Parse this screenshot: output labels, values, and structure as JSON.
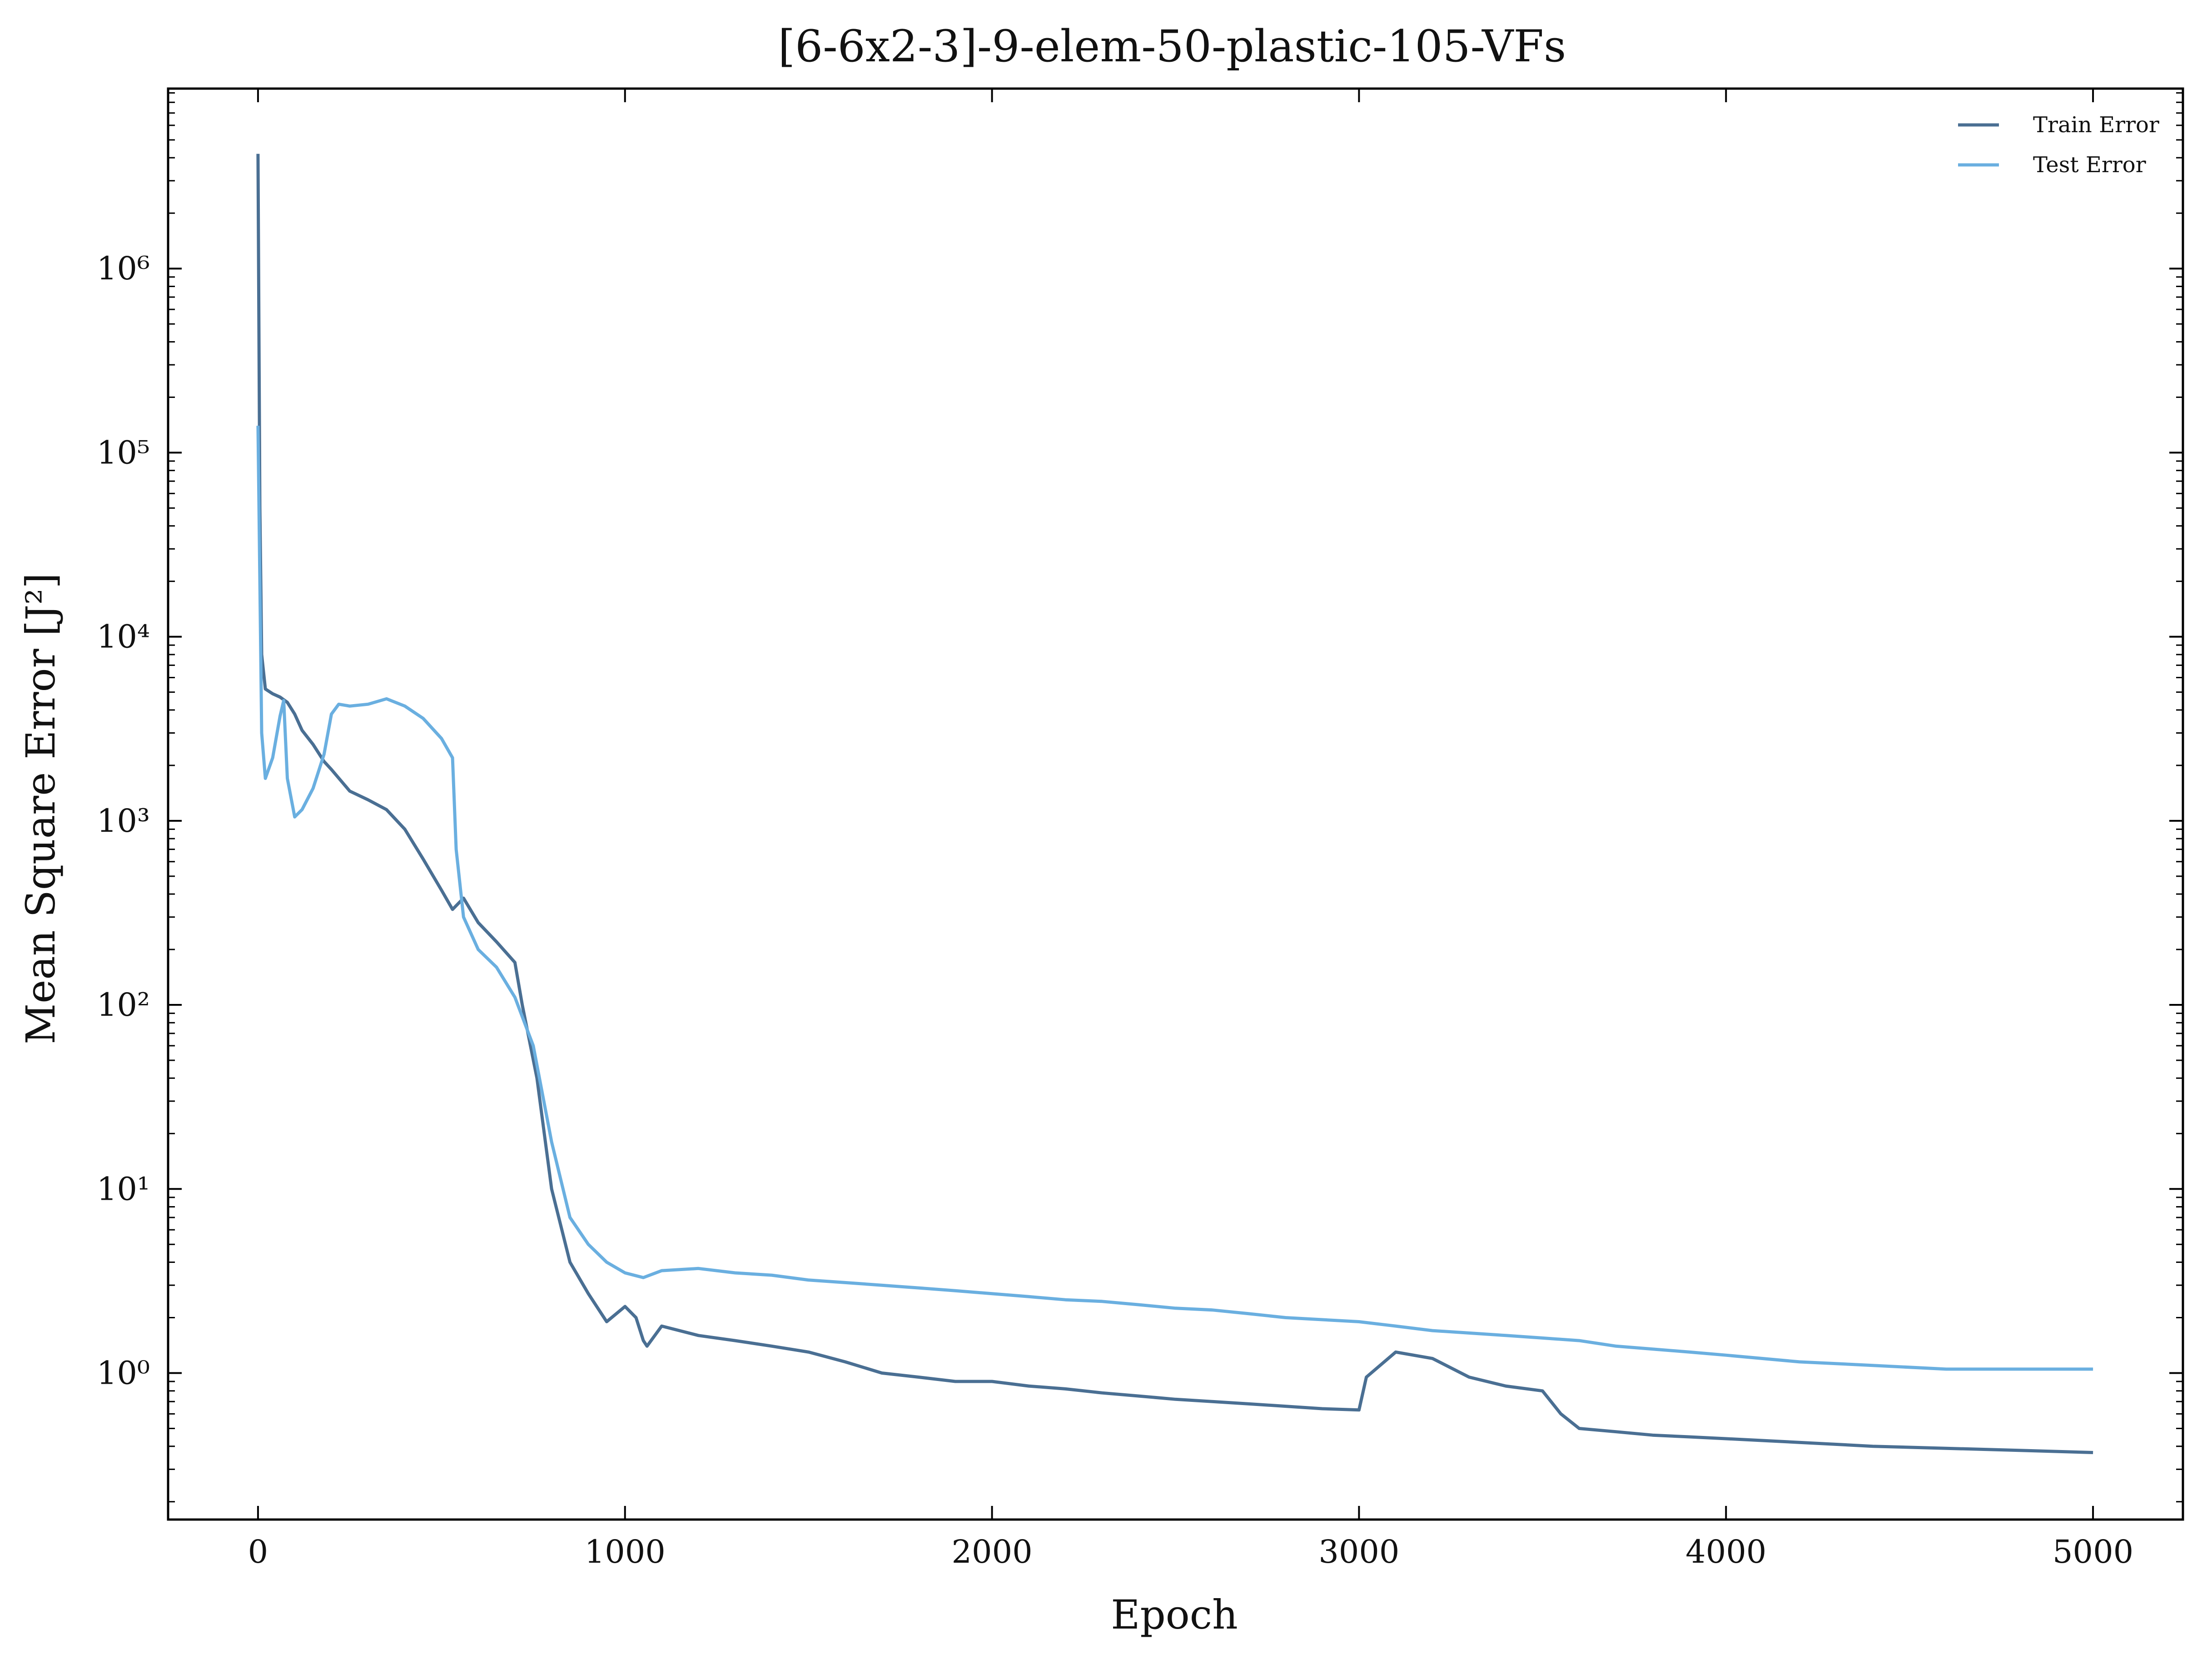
{
  "chart_data": {
    "type": "line",
    "title": "[6-6x2-3]-9-elem-50-plastic-105-VFs",
    "xlabel": "Epoch",
    "ylabel": "Mean Square Error [J²]",
    "xlim": [
      -245,
      5245
    ],
    "ylim": [
      0.16,
      9500000
    ],
    "yscale": "log",
    "xticks": [
      0,
      1000,
      2000,
      3000,
      4000,
      5000
    ],
    "xtick_labels": [
      "0",
      "1000",
      "2000",
      "3000",
      "4000",
      "5000"
    ],
    "yticks": [
      1,
      10,
      100,
      1000,
      10000,
      100000,
      1000000
    ],
    "ytick_labels": [
      "10⁰",
      "10¹",
      "10²",
      "10³",
      "10⁴",
      "10⁵",
      "10⁶"
    ],
    "grid": false,
    "legend_position": "top-right",
    "series": [
      {
        "name": "Train Error",
        "color": "#4a6f93",
        "x": [
          0,
          5,
          10,
          20,
          40,
          60,
          80,
          100,
          120,
          150,
          180,
          200,
          250,
          300,
          350,
          400,
          450,
          500,
          530,
          560,
          600,
          650,
          700,
          720,
          760,
          800,
          850,
          900,
          950,
          1000,
          1030,
          1050,
          1060,
          1100,
          1200,
          1300,
          1400,
          1500,
          1600,
          1700,
          1800,
          1900,
          2000,
          2100,
          2200,
          2300,
          2400,
          2500,
          2600,
          2700,
          2800,
          2900,
          3000,
          3020,
          3100,
          3200,
          3300,
          3400,
          3500,
          3550,
          3600,
          3700,
          3800,
          3900,
          4000,
          4200,
          4400,
          4600,
          4800,
          5000
        ],
        "y": [
          4200000,
          50000,
          8000,
          5200,
          4900,
          4700,
          4400,
          3800,
          3100,
          2600,
          2100,
          1900,
          1450,
          1300,
          1150,
          900,
          620,
          420,
          330,
          380,
          280,
          220,
          170,
          100,
          40,
          10,
          4.0,
          2.7,
          1.9,
          2.3,
          2.0,
          1.5,
          1.4,
          1.8,
          1.6,
          1.5,
          1.4,
          1.3,
          1.15,
          1.0,
          0.95,
          0.9,
          0.9,
          0.85,
          0.82,
          0.78,
          0.75,
          0.72,
          0.7,
          0.68,
          0.66,
          0.64,
          0.63,
          0.95,
          1.3,
          1.2,
          0.95,
          0.85,
          0.8,
          0.6,
          0.5,
          0.48,
          0.46,
          0.45,
          0.44,
          0.42,
          0.4,
          0.39,
          0.38,
          0.37
        ]
      },
      {
        "name": "Test Error",
        "color": "#6aafe0",
        "x": [
          0,
          5,
          10,
          20,
          40,
          60,
          70,
          80,
          100,
          120,
          150,
          180,
          200,
          220,
          250,
          300,
          350,
          400,
          450,
          500,
          530,
          540,
          560,
          600,
          650,
          700,
          750,
          800,
          850,
          900,
          950,
          1000,
          1050,
          1100,
          1200,
          1300,
          1400,
          1500,
          1600,
          1700,
          1800,
          1900,
          2000,
          2100,
          2200,
          2300,
          2400,
          2500,
          2600,
          2700,
          2800,
          2900,
          3000,
          3100,
          3200,
          3300,
          3400,
          3500,
          3600,
          3700,
          3800,
          3900,
          4000,
          4200,
          4400,
          4600,
          4800,
          5000
        ],
        "y": [
          140000,
          20000,
          3000,
          1700,
          2200,
          3700,
          4500,
          1700,
          1050,
          1150,
          1500,
          2300,
          3800,
          4300,
          4200,
          4300,
          4600,
          4200,
          3600,
          2800,
          2200,
          700,
          300,
          200,
          160,
          110,
          60,
          18,
          7,
          5,
          4,
          3.5,
          3.3,
          3.6,
          3.7,
          3.5,
          3.4,
          3.2,
          3.1,
          3.0,
          2.9,
          2.8,
          2.7,
          2.6,
          2.5,
          2.45,
          2.35,
          2.25,
          2.2,
          2.1,
          2.0,
          1.95,
          1.9,
          1.8,
          1.7,
          1.65,
          1.6,
          1.55,
          1.5,
          1.4,
          1.35,
          1.3,
          1.25,
          1.15,
          1.1,
          1.05,
          1.05,
          1.05
        ]
      }
    ],
    "annotations": []
  }
}
